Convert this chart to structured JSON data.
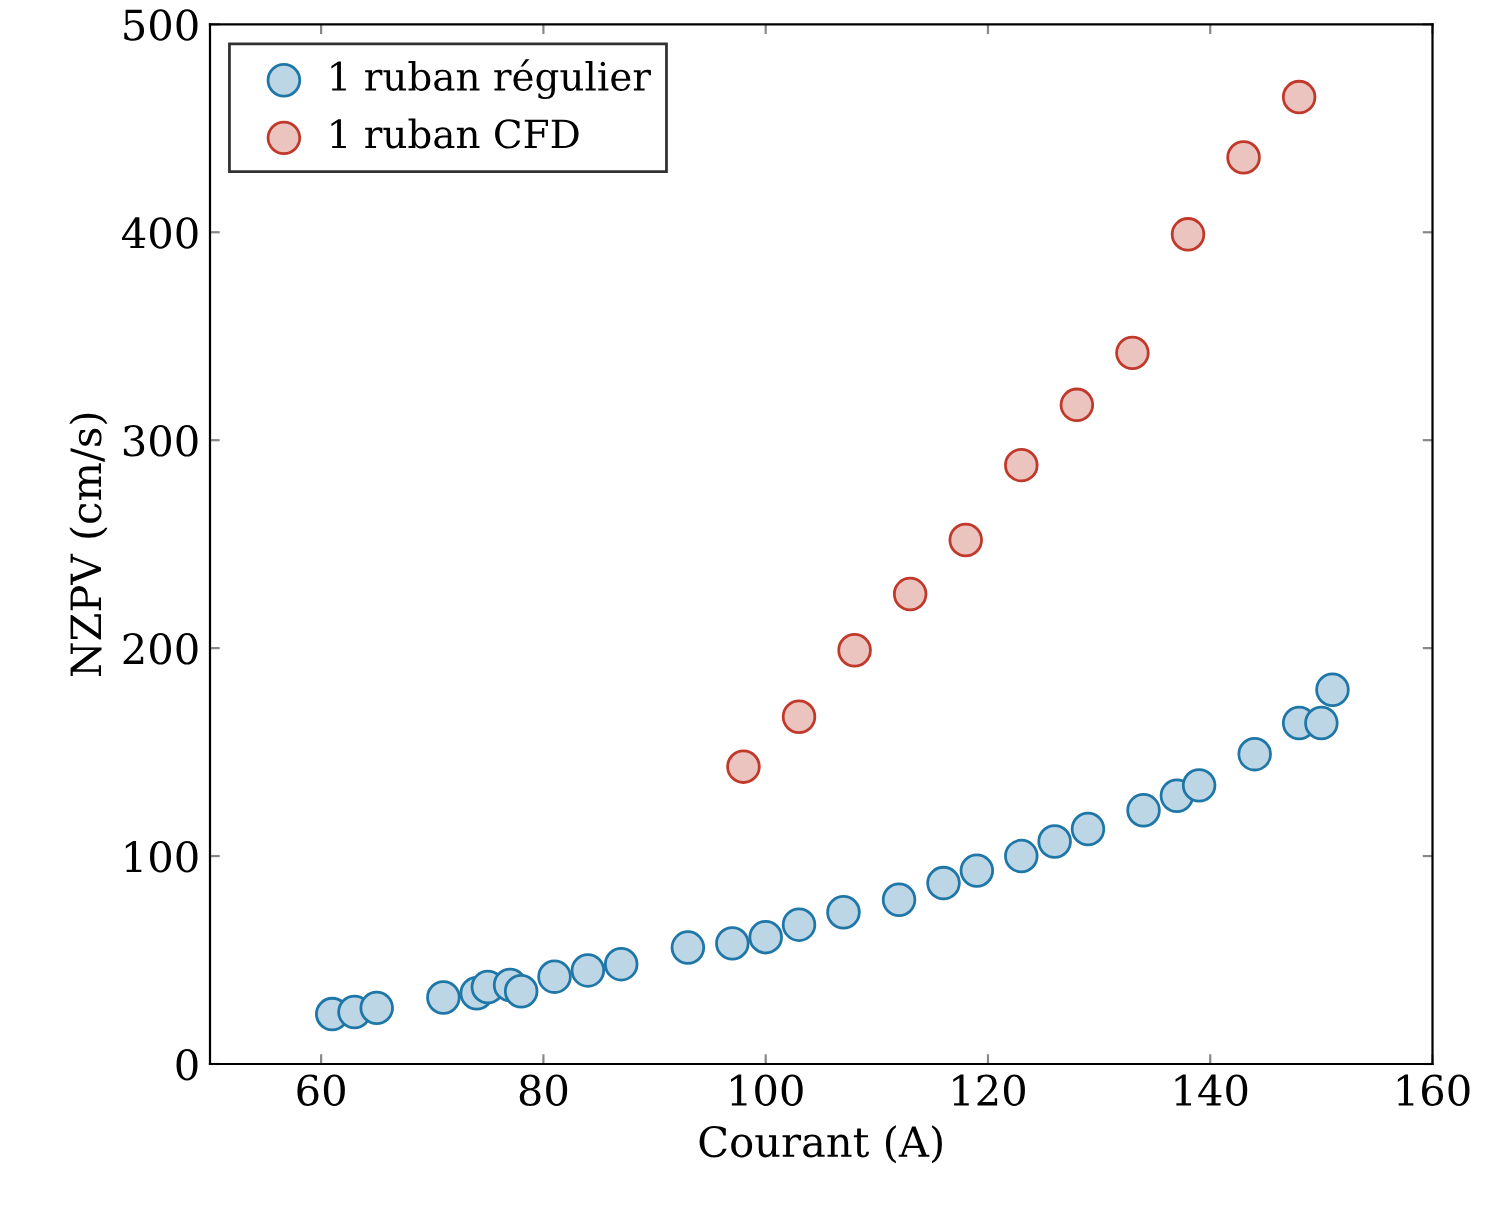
{
  "chart_data": {
    "type": "scatter",
    "xlabel": "Courant (A)",
    "ylabel": "NZPV (cm/s)",
    "xlim": [
      50,
      160
    ],
    "xticks": [
      60,
      80,
      100,
      120,
      140,
      160
    ],
    "ylim": [
      0,
      500
    ],
    "yticks": [
      0,
      100,
      200,
      300,
      400,
      500
    ],
    "grid": false,
    "legend": "top left",
    "marker": "circle",
    "series": [
      {
        "name": "1 ruban régulier",
        "color": "#1f77a8",
        "x": [
          61,
          63,
          65,
          71,
          74,
          75,
          77,
          78,
          81,
          84,
          87,
          93,
          97,
          100,
          103,
          107,
          112,
          116,
          119,
          123,
          126,
          129,
          134,
          137,
          139,
          144,
          148,
          150,
          151
        ],
        "values": [
          24,
          25,
          27,
          32,
          34,
          37,
          38,
          35,
          42,
          45,
          48,
          56,
          58,
          61,
          67,
          73,
          79,
          87,
          93,
          100,
          107,
          113,
          122,
          129,
          134,
          149,
          164,
          164,
          180
        ]
      },
      {
        "name": "1 ruban CFD",
        "color": "#c0392b",
        "x": [
          98,
          103,
          108,
          113,
          118,
          123,
          128,
          133,
          138,
          143,
          148
        ],
        "values": [
          143,
          167,
          199,
          226,
          252,
          288,
          317,
          342,
          399,
          436,
          465
        ]
      }
    ]
  }
}
